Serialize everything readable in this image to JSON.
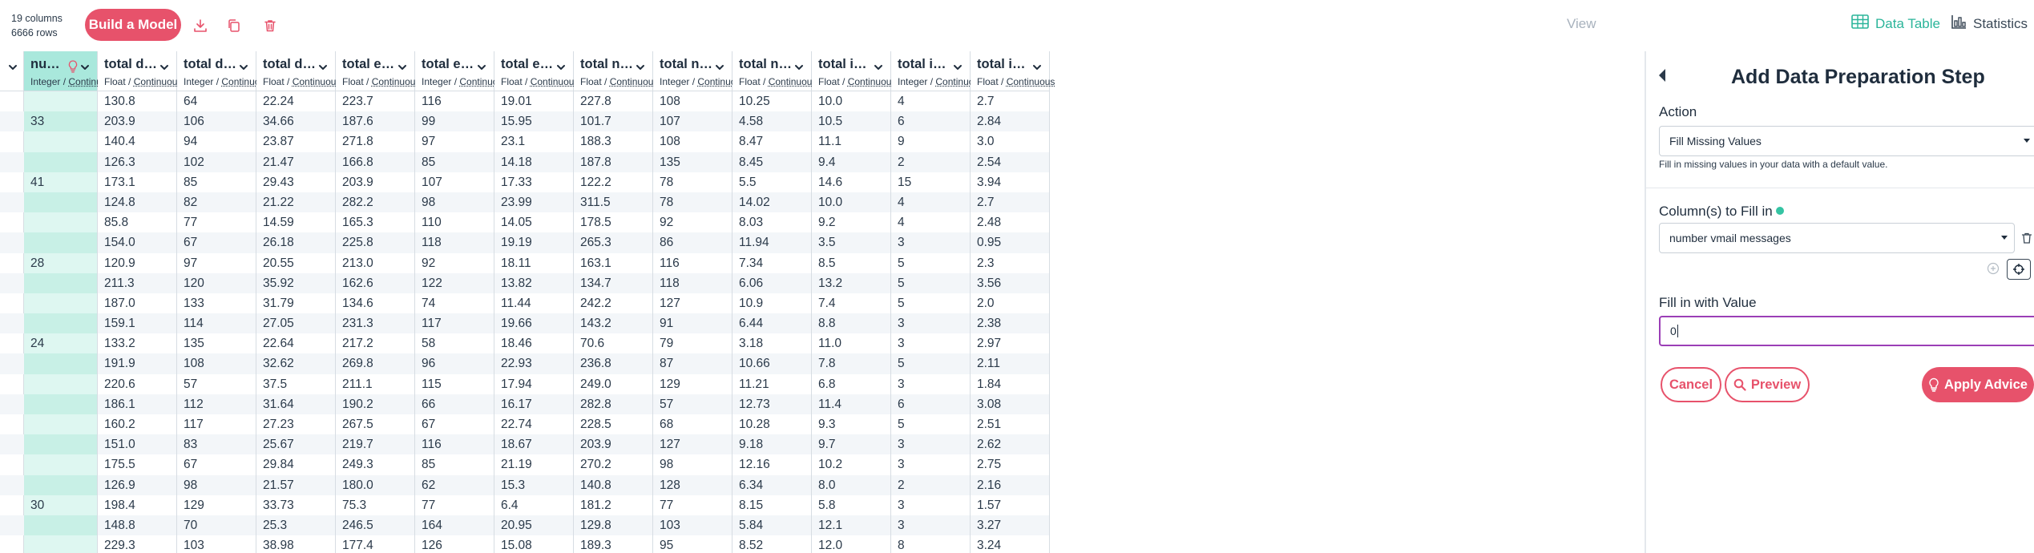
{
  "dataset": {
    "columns_count": "19 columns",
    "rows_count": "6666 rows"
  },
  "toolbar": {
    "build_model_label": "Build a Model",
    "view_label": "View",
    "data_table_label": "Data Table",
    "statistics_label": "Statistics"
  },
  "colors": {
    "accent": "#e7526b",
    "teal": "#2bb59a",
    "selected_column": "#a9e8dc",
    "focus_border": "#9b3fb6"
  },
  "table": {
    "columns": [
      {
        "title": "number vm...",
        "type": "Integer",
        "kind": "Continuous",
        "selected": true,
        "values": [
          "",
          "33",
          "",
          "",
          "41",
          "",
          "",
          "",
          "28",
          "",
          "",
          "",
          "24",
          "",
          "",
          "",
          "",
          "",
          "",
          "",
          "30",
          "",
          ""
        ]
      },
      {
        "title": "total day min...",
        "type": "Float",
        "kind": "Continuous",
        "values": [
          "130.8",
          "203.9",
          "140.4",
          "126.3",
          "173.1",
          "124.8",
          "85.8",
          "154.0",
          "120.9",
          "211.3",
          "187.0",
          "159.1",
          "133.2",
          "191.9",
          "220.6",
          "186.1",
          "160.2",
          "151.0",
          "175.5",
          "126.9",
          "198.4",
          "148.8",
          "229.3"
        ]
      },
      {
        "title": "total day calls",
        "type": "Integer",
        "kind": "Continuous",
        "values": [
          "64",
          "106",
          "94",
          "102",
          "85",
          "82",
          "77",
          "67",
          "97",
          "120",
          "133",
          "114",
          "135",
          "108",
          "57",
          "112",
          "117",
          "83",
          "67",
          "98",
          "129",
          "70",
          "103"
        ]
      },
      {
        "title": "total day char...",
        "type": "Float",
        "kind": "Continuous",
        "values": [
          "22.24",
          "34.66",
          "23.87",
          "21.47",
          "29.43",
          "21.22",
          "14.59",
          "26.18",
          "20.55",
          "35.92",
          "31.79",
          "27.05",
          "22.64",
          "32.62",
          "37.5",
          "31.64",
          "27.23",
          "25.67",
          "29.84",
          "21.57",
          "33.73",
          "25.3",
          "38.98"
        ]
      },
      {
        "title": "total evening ...",
        "type": "Float",
        "kind": "Continuous",
        "values": [
          "223.7",
          "187.6",
          "271.8",
          "166.8",
          "203.9",
          "282.2",
          "165.3",
          "225.8",
          "213.0",
          "162.6",
          "134.6",
          "231.3",
          "217.2",
          "269.8",
          "211.1",
          "190.2",
          "267.5",
          "219.7",
          "249.3",
          "180.0",
          "75.3",
          "246.5",
          "177.4"
        ]
      },
      {
        "title": "total evening ...",
        "type": "Integer",
        "kind": "Continuous",
        "values": [
          "116",
          "99",
          "97",
          "85",
          "107",
          "98",
          "110",
          "118",
          "92",
          "122",
          "74",
          "117",
          "58",
          "96",
          "115",
          "66",
          "67",
          "116",
          "85",
          "62",
          "77",
          "164",
          "126"
        ]
      },
      {
        "title": "total evening ...",
        "type": "Float",
        "kind": "Continuous",
        "values": [
          "19.01",
          "15.95",
          "23.1",
          "14.18",
          "17.33",
          "23.99",
          "14.05",
          "19.19",
          "18.11",
          "13.82",
          "11.44",
          "19.66",
          "18.46",
          "22.93",
          "17.94",
          "16.17",
          "22.74",
          "18.67",
          "21.19",
          "15.3",
          "6.4",
          "20.95",
          "15.08"
        ]
      },
      {
        "title": "total night mi...",
        "type": "Float",
        "kind": "Continuous",
        "values": [
          "227.8",
          "101.7",
          "188.3",
          "187.8",
          "122.2",
          "311.5",
          "178.5",
          "265.3",
          "163.1",
          "134.7",
          "242.2",
          "143.2",
          "70.6",
          "236.8",
          "249.0",
          "282.8",
          "228.5",
          "203.9",
          "270.2",
          "140.8",
          "181.2",
          "129.8",
          "189.3"
        ]
      },
      {
        "title": "total night calls",
        "type": "Integer",
        "kind": "Continuous",
        "values": [
          "108",
          "107",
          "108",
          "135",
          "78",
          "78",
          "92",
          "86",
          "116",
          "118",
          "127",
          "91",
          "79",
          "87",
          "129",
          "57",
          "68",
          "127",
          "98",
          "128",
          "77",
          "103",
          "95"
        ]
      },
      {
        "title": "total night ch...",
        "type": "Float",
        "kind": "Continuous",
        "values": [
          "10.25",
          "4.58",
          "8.47",
          "8.45",
          "5.5",
          "14.02",
          "8.03",
          "11.94",
          "7.34",
          "6.06",
          "10.9",
          "6.44",
          "3.18",
          "10.66",
          "11.21",
          "12.73",
          "10.28",
          "9.18",
          "12.16",
          "6.34",
          "8.15",
          "5.84",
          "8.52"
        ]
      },
      {
        "title": "total internat...",
        "type": "Float",
        "kind": "Continuous",
        "values": [
          "10.0",
          "10.5",
          "11.1",
          "9.4",
          "14.6",
          "10.0",
          "9.2",
          "3.5",
          "8.5",
          "13.2",
          "7.4",
          "8.8",
          "11.0",
          "7.8",
          "6.8",
          "11.4",
          "9.3",
          "9.7",
          "10.2",
          "8.0",
          "5.8",
          "12.1",
          "12.0"
        ]
      },
      {
        "title": "total internat...",
        "type": "Integer",
        "kind": "Continuous",
        "values": [
          "4",
          "6",
          "9",
          "2",
          "15",
          "4",
          "4",
          "3",
          "5",
          "5",
          "5",
          "3",
          "3",
          "5",
          "3",
          "6",
          "5",
          "3",
          "3",
          "2",
          "3",
          "3",
          "8"
        ]
      },
      {
        "title": "total interna",
        "type": "Float",
        "kind": "Continuous",
        "values": [
          "2.7",
          "2.84",
          "3.0",
          "2.54",
          "3.94",
          "2.7",
          "2.48",
          "0.95",
          "2.3",
          "3.56",
          "2.0",
          "2.38",
          "2.97",
          "2.11",
          "1.84",
          "3.08",
          "2.51",
          "2.62",
          "2.75",
          "2.16",
          "1.57",
          "3.27",
          "3.24"
        ]
      }
    ]
  },
  "panel": {
    "title": "Add Data Preparation Step",
    "action_label": "Action",
    "action_value": "Fill Missing Values",
    "action_hint": "Fill in missing values in your data with a default value.",
    "columns_label": "Column(s) to Fill in",
    "columns_value": "number vmail messages",
    "fill_label": "Fill in with Value",
    "fill_value": "0",
    "cancel_label": "Cancel",
    "preview_label": "Preview",
    "apply_label": "Apply Advice"
  }
}
